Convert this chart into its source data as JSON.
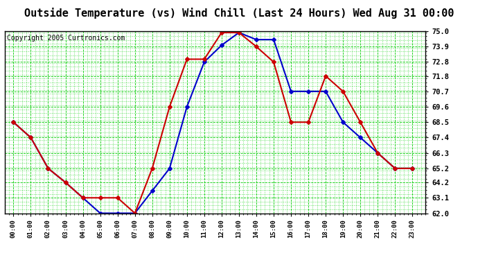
{
  "title": "Outside Temperature (vs) Wind Chill (Last 24 Hours) Wed Aug 31 00:00",
  "copyright": "Copyright 2005 Curtronics.com",
  "hours": [
    "00:00",
    "01:00",
    "02:00",
    "03:00",
    "04:00",
    "05:00",
    "06:00",
    "07:00",
    "08:00",
    "09:00",
    "10:00",
    "11:00",
    "12:00",
    "13:00",
    "14:00",
    "15:00",
    "16:00",
    "17:00",
    "18:00",
    "19:00",
    "20:00",
    "21:00",
    "22:00",
    "23:00"
  ],
  "blue_temp": [
    68.5,
    67.4,
    65.2,
    64.2,
    63.1,
    62.0,
    62.0,
    62.0,
    63.6,
    65.2,
    69.6,
    72.8,
    74.0,
    74.9,
    74.4,
    74.4,
    70.7,
    70.7,
    70.7,
    68.5,
    67.4,
    66.3,
    65.2,
    65.2
  ],
  "red_windchill": [
    68.5,
    67.4,
    65.2,
    64.2,
    63.1,
    63.1,
    63.1,
    62.0,
    65.2,
    69.6,
    73.0,
    73.0,
    74.9,
    74.9,
    73.9,
    72.8,
    68.5,
    68.5,
    71.8,
    70.7,
    68.5,
    66.3,
    65.2,
    65.2
  ],
  "ylim": [
    62.0,
    75.0
  ],
  "yticks": [
    62.0,
    63.1,
    64.2,
    65.2,
    66.3,
    67.4,
    68.5,
    69.6,
    70.7,
    71.8,
    72.8,
    73.9,
    75.0
  ],
  "blue_color": "#0000cc",
  "red_color": "#cc0000",
  "bg_color": "#ffffff",
  "plot_bg": "#ffffff",
  "grid_color": "#00cc00",
  "title_fontsize": 11,
  "copyright_fontsize": 7,
  "marker": "D",
  "marker_size": 3,
  "linewidth": 1.5
}
